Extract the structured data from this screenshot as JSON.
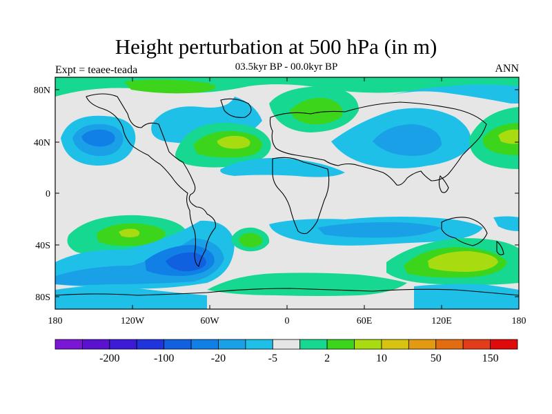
{
  "title": "Height perturbation at 500 hPa (in m)",
  "subtitle": "03.5kyr BP - 00.0kyr BP",
  "left_label": "Expt = teaee-teada",
  "right_label": "ANN",
  "lat_ticks": [
    "80N",
    "40N",
    "0",
    "40S",
    "80S"
  ],
  "lon_ticks": [
    "180",
    "120W",
    "60W",
    "0",
    "60E",
    "120E",
    "180"
  ],
  "colorbar": {
    "colors": [
      "#7a16d6",
      "#5a12d0",
      "#3c1ad6",
      "#1f34dc",
      "#1060e0",
      "#1080e6",
      "#1aa0e6",
      "#1ec0e8",
      "#e6e6e6",
      "#16d890",
      "#3dd41c",
      "#a8dc10",
      "#d8c410",
      "#e49a10",
      "#e26c12",
      "#e23c1a",
      "#e00a0a"
    ],
    "labels": [
      {
        "text": "-200",
        "index": 1
      },
      {
        "text": "-100",
        "index": 3
      },
      {
        "text": "-20",
        "index": 5
      },
      {
        "text": "-5",
        "index": 7
      },
      {
        "text": "2",
        "index": 9
      },
      {
        "text": "10",
        "index": 11
      },
      {
        "text": "50",
        "index": 13
      },
      {
        "text": "150",
        "index": 15
      }
    ]
  },
  "palette": {
    "ocean_neutral": "#e6e6e6",
    "blue_light": "#1ec0e8",
    "blue_mid": "#1aa0e6",
    "blue_deep": "#1080e6",
    "blue_dark": "#1060e0",
    "green_light": "#16d890",
    "green": "#3dd41c",
    "yellow_green": "#a8dc10"
  }
}
